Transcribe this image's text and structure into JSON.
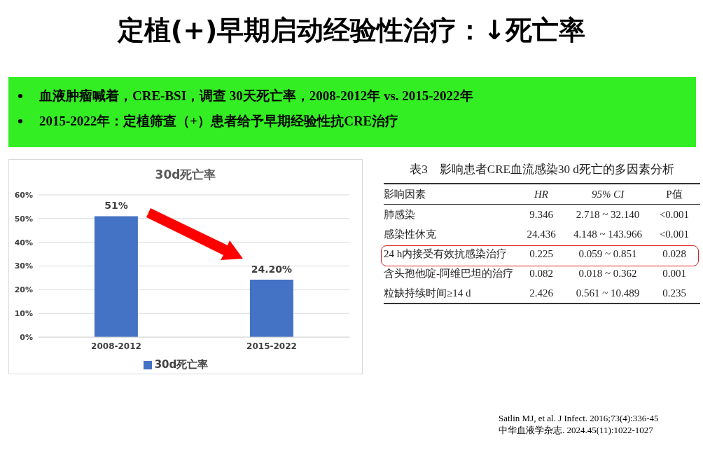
{
  "chart_data": [
    {
      "type": "other",
      "title": "定植(+)早期启动经验性治疗：↓死亡率",
      "annotations": [
        "血液肿瘤喊着，CRE-BSI，调查 30天死亡率，2008-2012年 vs. 2015-2022年",
        "2015-2022年：定植筛查（+）患者给予早期经验性抗CRE治疗"
      ]
    },
    {
      "type": "bar",
      "title": "30d死亡率",
      "categories": [
        "2008-2012",
        "2015-2022"
      ],
      "series": [
        {
          "name": "30d死亡率",
          "color": "#4472c4",
          "values": [
            51,
            24.2
          ],
          "value_labels": [
            "51%",
            "24.20%"
          ]
        }
      ],
      "ylim": [
        0,
        60
      ],
      "yticks": [
        {
          "value": 0,
          "label": "0%"
        },
        {
          "value": 10,
          "label": "10%"
        },
        {
          "value": 20,
          "label": "20%"
        },
        {
          "value": 30,
          "label": "30%"
        },
        {
          "value": 40,
          "label": "40%"
        },
        {
          "value": 50,
          "label": "50%"
        },
        {
          "value": 60,
          "label": "60%"
        }
      ],
      "grid": "y",
      "legend": "bottom"
    },
    {
      "type": "other",
      "title": "表3　影响患者CRE血流感染30 d死亡的多因素分析",
      "annotations": [
        "影响因素",
        "HR",
        "95% CI",
        "P值",
        "肺感染",
        "9.346",
        "2.718 ~ 32.140",
        "<0.001",
        "感染性休克",
        "24.436",
        "4.148 ~ 143.966",
        "<0.001",
        "24 h内接受有效抗感染治疗",
        "0.225",
        "0.059 ~ 0.851",
        "0.028",
        "含头孢他啶-阿维巴坦的治疗",
        "0.082",
        "0.018 ~ 0.362",
        "0.001",
        "粒缺持续时间≥14 d",
        "2.426",
        "0.561 ~ 10.489",
        "0.235"
      ]
    },
    {
      "type": "other",
      "annotations": [
        "Satlin MJ, et al. J Infect. 2016;73(4):336-45",
        "中华血液学杂志. 2024.45(11):1022-1027"
      ]
    }
  ]
}
